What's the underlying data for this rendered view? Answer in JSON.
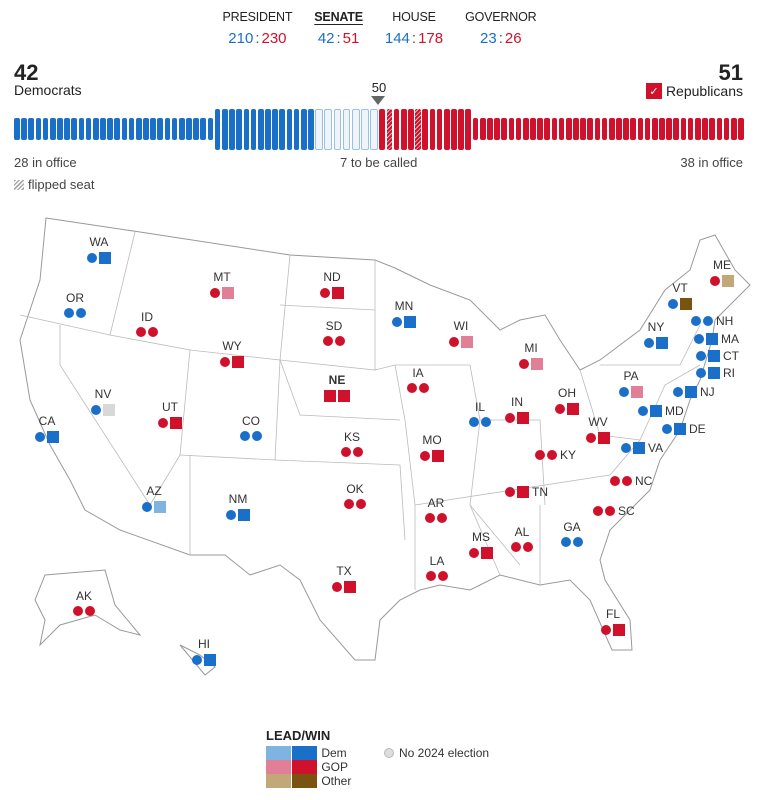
{
  "nav": [
    {
      "label": "PRESIDENT",
      "dem": "210",
      "rep": "230",
      "active": false
    },
    {
      "label": "SENATE",
      "dem": "42",
      "rep": "51",
      "active": true
    },
    {
      "label": "HOUSE",
      "dem": "144",
      "rep": "178",
      "active": false
    },
    {
      "label": "GOVERNOR",
      "dem": "23",
      "rep": "26",
      "active": false
    }
  ],
  "senate": {
    "dem_total": "42",
    "dem_label": "Democrats",
    "rep_total": "51",
    "rep_label": "Republicans",
    "rep_check": "✓",
    "majority": "50",
    "dem_in_office_label": "28 in office",
    "rep_in_office_label": "38 in office",
    "uncalled_label": "7 to be called",
    "flipped_label": "flipped seat",
    "seats": {
      "dem_in_office": 28,
      "dem_won": 14,
      "uncalled": 7,
      "rep_won": 13,
      "rep_in_office": 38,
      "rep_flipped": 2
    }
  },
  "colors": {
    "dem": "#1a6fc9",
    "dem_lead": "#7fb3e0",
    "rep": "#d0112b",
    "rep_lead": "#e07f95",
    "other": "#7b5311",
    "other_lead": "#c2a878",
    "none": "#d8d8d8"
  },
  "states": [
    {
      "abbr": "WA",
      "marks": [
        "c:dem",
        "s:dem"
      ]
    },
    {
      "abbr": "OR",
      "marks": [
        "c:dem",
        "c:dem"
      ]
    },
    {
      "abbr": "CA",
      "marks": [
        "c:dem",
        "s:dem"
      ]
    },
    {
      "abbr": "NV",
      "marks": [
        "c:dem",
        "s:none"
      ]
    },
    {
      "abbr": "ID",
      "marks": [
        "c:rep",
        "c:rep"
      ]
    },
    {
      "abbr": "MT",
      "marks": [
        "c:rep",
        "s:rep_lead"
      ]
    },
    {
      "abbr": "WY",
      "marks": [
        "c:rep",
        "s:rep"
      ]
    },
    {
      "abbr": "UT",
      "marks": [
        "c:rep",
        "s:rep"
      ]
    },
    {
      "abbr": "CO",
      "marks": [
        "c:dem",
        "c:dem"
      ]
    },
    {
      "abbr": "AZ",
      "marks": [
        "c:dem",
        "s:dem_lead"
      ]
    },
    {
      "abbr": "NM",
      "marks": [
        "c:dem",
        "s:dem"
      ]
    },
    {
      "abbr": "ND",
      "marks": [
        "c:rep",
        "s:rep"
      ]
    },
    {
      "abbr": "SD",
      "marks": [
        "c:rep",
        "c:rep"
      ]
    },
    {
      "abbr": "NE",
      "marks": [
        "s:rep",
        "s:rep"
      ]
    },
    {
      "abbr": "KS",
      "marks": [
        "c:rep",
        "c:rep"
      ]
    },
    {
      "abbr": "OK",
      "marks": [
        "c:rep",
        "c:rep"
      ]
    },
    {
      "abbr": "TX",
      "marks": [
        "c:rep",
        "s:rep"
      ]
    },
    {
      "abbr": "AK",
      "marks": [
        "c:rep",
        "c:rep"
      ]
    },
    {
      "abbr": "HI",
      "marks": [
        "c:dem",
        "s:dem"
      ]
    },
    {
      "abbr": "MN",
      "marks": [
        "c:dem",
        "s:dem"
      ]
    },
    {
      "abbr": "IA",
      "marks": [
        "c:rep",
        "c:rep"
      ]
    },
    {
      "abbr": "MO",
      "marks": [
        "c:rep",
        "s:rep"
      ]
    },
    {
      "abbr": "AR",
      "marks": [
        "c:rep",
        "c:rep"
      ]
    },
    {
      "abbr": "LA",
      "marks": [
        "c:rep",
        "c:rep"
      ]
    },
    {
      "abbr": "WI",
      "marks": [
        "c:rep",
        "s:rep_lead"
      ]
    },
    {
      "abbr": "IL",
      "marks": [
        "c:dem",
        "c:dem"
      ]
    },
    {
      "abbr": "MI",
      "marks": [
        "c:rep",
        "s:rep_lead"
      ]
    },
    {
      "abbr": "IN",
      "marks": [
        "c:rep",
        "s:rep"
      ]
    },
    {
      "abbr": "OH",
      "marks": [
        "c:rep",
        "s:rep"
      ]
    },
    {
      "abbr": "KY",
      "marks": [
        "c:rep",
        "c:rep"
      ]
    },
    {
      "abbr": "TN",
      "marks": [
        "c:rep",
        "s:rep"
      ]
    },
    {
      "abbr": "MS",
      "marks": [
        "c:rep",
        "s:rep"
      ]
    },
    {
      "abbr": "AL",
      "marks": [
        "c:rep",
        "c:rep"
      ]
    },
    {
      "abbr": "GA",
      "marks": [
        "c:dem",
        "c:dem"
      ]
    },
    {
      "abbr": "FL",
      "marks": [
        "c:rep",
        "s:rep"
      ]
    },
    {
      "abbr": "SC",
      "marks": [
        "c:rep",
        "c:rep"
      ]
    },
    {
      "abbr": "NC",
      "marks": [
        "c:rep",
        "c:rep"
      ]
    },
    {
      "abbr": "WV",
      "marks": [
        "c:rep",
        "s:rep"
      ]
    },
    {
      "abbr": "VA",
      "marks": [
        "c:dem",
        "s:dem"
      ]
    },
    {
      "abbr": "PA",
      "marks": [
        "c:dem",
        "s:rep_lead"
      ]
    },
    {
      "abbr": "NY",
      "marks": [
        "c:dem",
        "s:dem"
      ]
    },
    {
      "abbr": "VT",
      "marks": [
        "c:dem",
        "s:other"
      ]
    },
    {
      "abbr": "ME",
      "marks": [
        "c:rep",
        "s:other_lead"
      ]
    },
    {
      "abbr": "NH",
      "marks": [
        "c:dem",
        "c:dem"
      ]
    },
    {
      "abbr": "MA",
      "marks": [
        "c:dem",
        "s:dem"
      ]
    },
    {
      "abbr": "CT",
      "marks": [
        "c:dem",
        "s:dem"
      ]
    },
    {
      "abbr": "RI",
      "marks": [
        "c:dem",
        "s:dem"
      ]
    },
    {
      "abbr": "NJ",
      "marks": [
        "c:dem",
        "s:dem"
      ]
    },
    {
      "abbr": "MD",
      "marks": [
        "c:dem",
        "s:dem"
      ]
    },
    {
      "abbr": "DE",
      "marks": [
        "c:dem",
        "s:dem"
      ]
    }
  ],
  "legend": {
    "title": "LEAD/WIN",
    "dem": "Dem",
    "gop": "GOP",
    "other": "Other",
    "no_election": "No 2024 election"
  }
}
